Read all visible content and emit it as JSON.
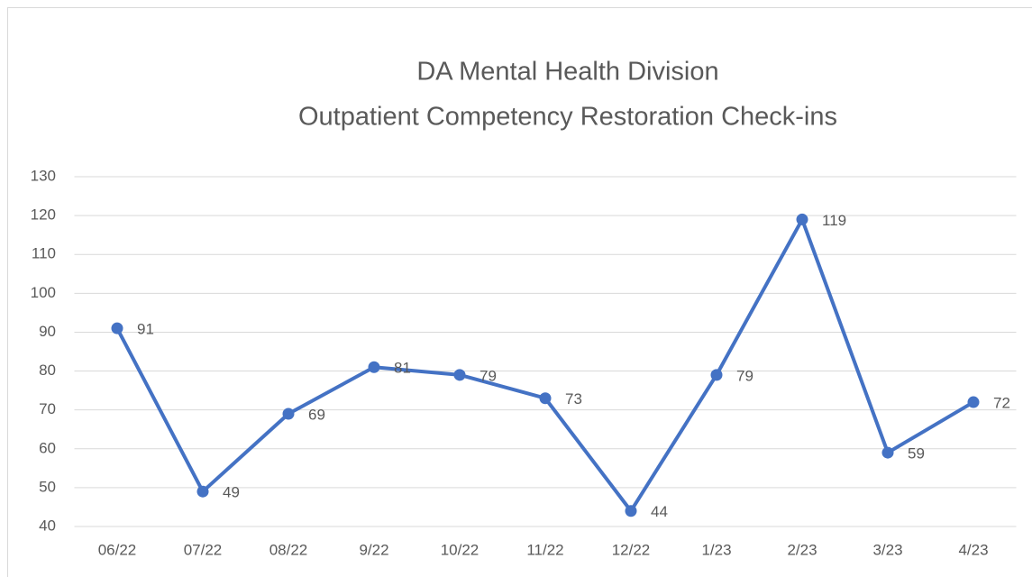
{
  "chart_data": {
    "type": "line",
    "title": [
      "DA Mental Health Division",
      "Outpatient Competency Restoration Check-ins"
    ],
    "categories": [
      "06/22",
      "07/22",
      "08/22",
      "9/22",
      "10/22",
      "11/22",
      "12/22",
      "1/23",
      "2/23",
      "3/23",
      "4/23"
    ],
    "values": [
      91,
      49,
      69,
      81,
      79,
      73,
      44,
      79,
      119,
      59,
      72
    ],
    "color": "#4472c4",
    "ylim": [
      40,
      130
    ],
    "yticks": [
      40,
      50,
      60,
      70,
      80,
      90,
      100,
      110,
      120,
      130
    ],
    "grid": true,
    "data_labels": true
  }
}
